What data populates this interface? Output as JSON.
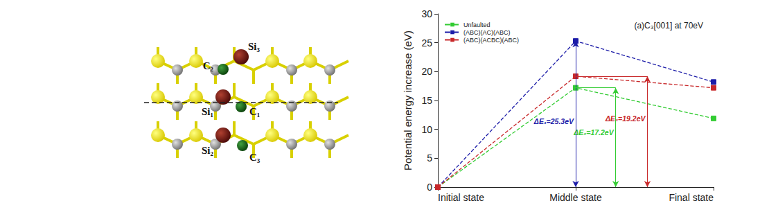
{
  "chart_data": {
    "type": "line",
    "title": "(a)C₃[001] at 70eV",
    "y_label": "Potential energy increase (eV)",
    "categories": [
      "Initial state",
      "Middle state",
      "Final state"
    ],
    "series": [
      {
        "name": "Unfaulted",
        "color": "#33cc33",
        "values": [
          0,
          17.2,
          11.9
        ]
      },
      {
        "name": "(ABC)(AC)(ABC)",
        "color": "#1c1ca8",
        "values": [
          0,
          25.3,
          18.2
        ]
      },
      {
        "name": "(ABC)(ACBC)(ABC)",
        "color": "#c8282a",
        "values": [
          0,
          19.2,
          17.2
        ]
      }
    ],
    "marker": "square",
    "line_style": "dashed",
    "ylim": [
      0,
      30
    ],
    "yticks": [
      0,
      5,
      10,
      15,
      20,
      25,
      30
    ],
    "legend": "upper left",
    "grid": false,
    "annotations": [
      {
        "text": "ΔE₁=25.3eV",
        "x": 1,
        "y": 25.3,
        "color": "#1c1ca8"
      },
      {
        "text": "ΔE₂=17.2eV",
        "x": 1.29,
        "y": 17.2,
        "color": "#33cc33"
      },
      {
        "text": "ΔE₃=19.2eV",
        "x": 1.52,
        "y": 19.2,
        "color": "#c8282a"
      }
    ]
  },
  "diagram": {
    "atom_labels": [
      "Si₃",
      "C₂",
      "Si₁",
      "C₁",
      "Si₂",
      "C₃"
    ]
  }
}
